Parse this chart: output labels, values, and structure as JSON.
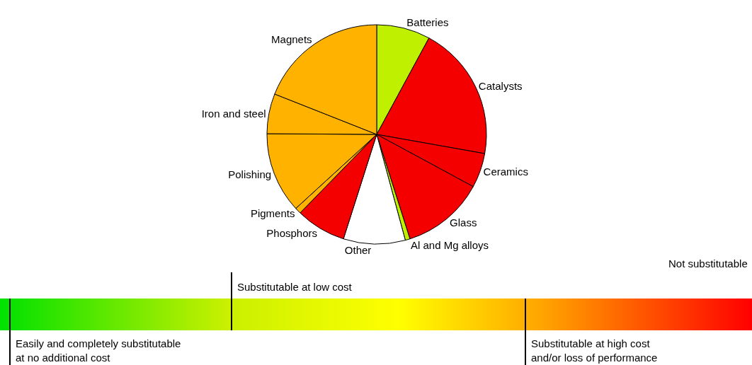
{
  "chart_data": {
    "type": "pie",
    "categories": [
      "Batteries",
      "Catalysts",
      "Ceramics",
      "Glass",
      "Al and Mg alloys",
      "Other",
      "Phosphors",
      "Pigments",
      "Polishing",
      "Iron and steel",
      "Magnets"
    ],
    "values": [
      7.9,
      19.9,
      5.1,
      12.2,
      0.7,
      9.1,
      7.4,
      0.9,
      11.9,
      5.9,
      19.0
    ],
    "colors": [
      "#bff000",
      "#f50000",
      "#f50000",
      "#f50000",
      "#bff000",
      "#ffffff",
      "#f50000",
      "#ffb300",
      "#ffb300",
      "#ffb300",
      "#ffb300"
    ],
    "annotations": [
      "Substitutable at low cost",
      "Not substitutable",
      "Easily and completely substitutable\nat no additional cost",
      "Substitutable at high cost\nand/or loss of performance"
    ]
  }
}
